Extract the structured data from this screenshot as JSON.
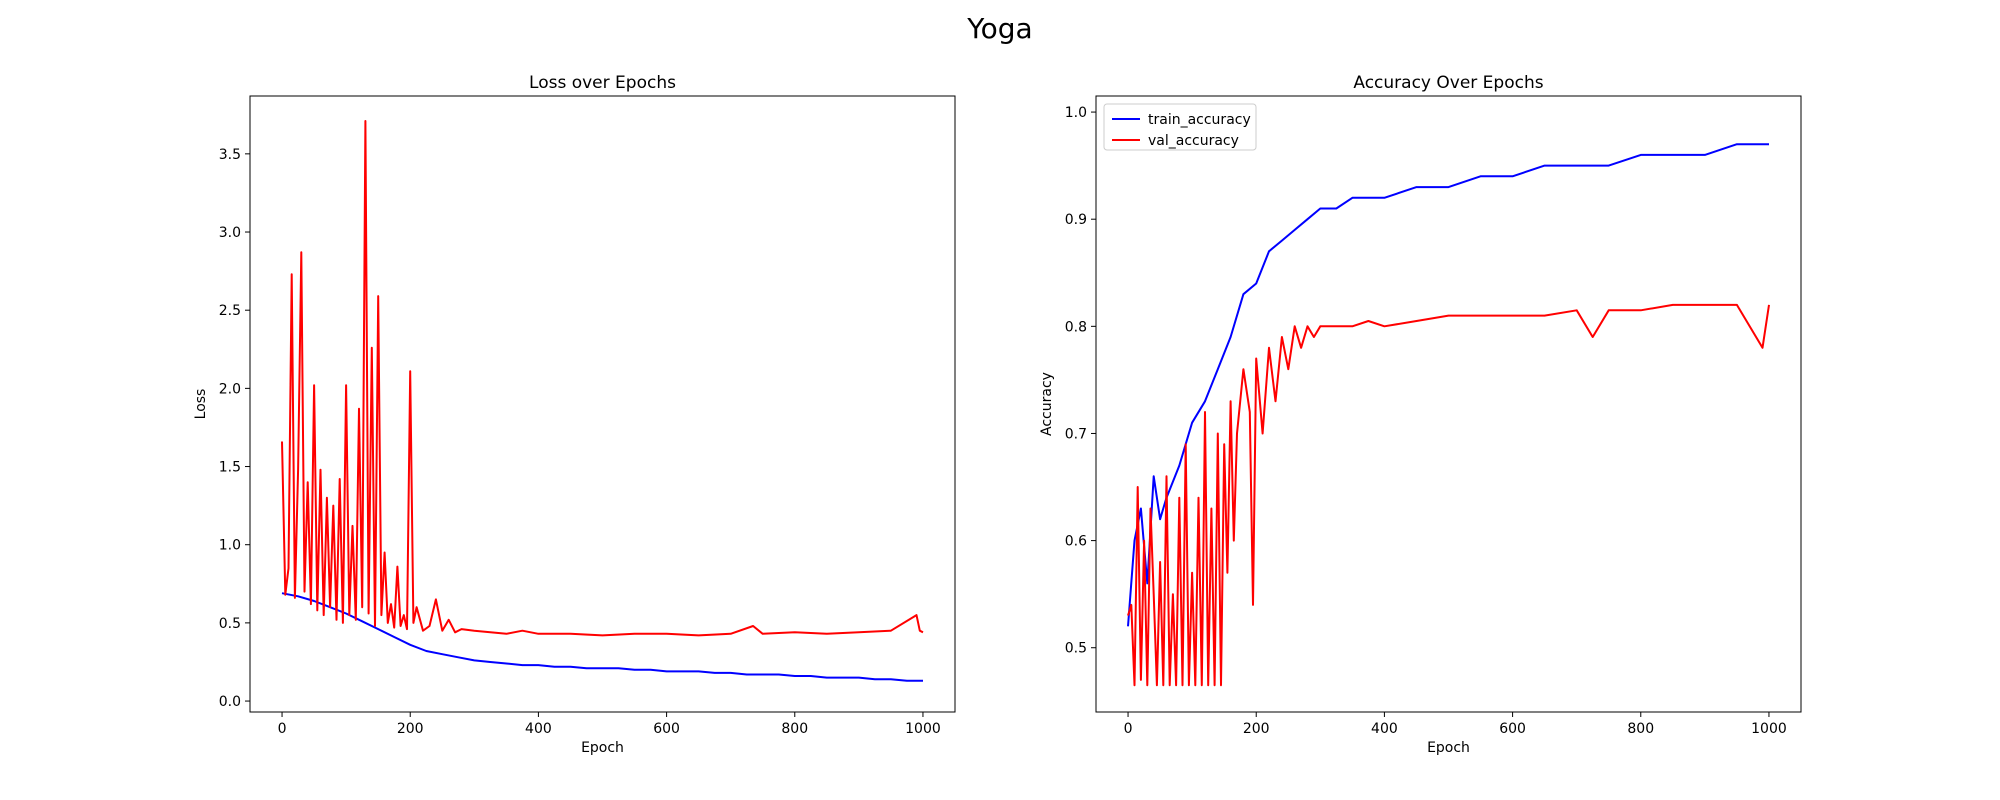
{
  "suptitle": "Yoga",
  "colors": {
    "train": "#0000ff",
    "val": "#ff0000",
    "axes": "#000000",
    "background": "#ffffff"
  },
  "chart_data": [
    {
      "type": "line",
      "title": "Loss over Epochs",
      "xlabel": "Epoch",
      "ylabel": "Loss",
      "xlim": [
        -50,
        1050
      ],
      "ylim": [
        -0.07,
        3.87
      ],
      "xticks": [
        0,
        200,
        400,
        600,
        800,
        1000
      ],
      "yticks": [
        0.0,
        0.5,
        1.0,
        1.5,
        2.0,
        2.5,
        3.0,
        3.5
      ],
      "ytick_labels": [
        "0.0",
        "0.5",
        "1.0",
        "1.5",
        "2.0",
        "2.5",
        "3.0",
        "3.5"
      ],
      "grid": false,
      "legend": false,
      "series": [
        {
          "key": "train_loss",
          "color": "#0000ff",
          "x": [
            0,
            25,
            50,
            75,
            100,
            125,
            150,
            175,
            200,
            225,
            250,
            275,
            300,
            325,
            350,
            375,
            400,
            425,
            450,
            475,
            500,
            525,
            550,
            575,
            600,
            625,
            650,
            675,
            700,
            725,
            750,
            775,
            800,
            825,
            850,
            875,
            900,
            925,
            950,
            975,
            1000
          ],
          "values": [
            0.69,
            0.67,
            0.64,
            0.6,
            0.56,
            0.51,
            0.46,
            0.41,
            0.36,
            0.32,
            0.3,
            0.28,
            0.26,
            0.25,
            0.24,
            0.23,
            0.23,
            0.22,
            0.22,
            0.21,
            0.21,
            0.21,
            0.2,
            0.2,
            0.19,
            0.19,
            0.19,
            0.18,
            0.18,
            0.17,
            0.17,
            0.17,
            0.16,
            0.16,
            0.15,
            0.15,
            0.15,
            0.14,
            0.14,
            0.13,
            0.13
          ]
        },
        {
          "key": "val_loss",
          "color": "#ff0000",
          "x": [
            0,
            5,
            10,
            15,
            20,
            25,
            30,
            35,
            40,
            45,
            50,
            55,
            60,
            65,
            70,
            75,
            80,
            85,
            90,
            95,
            100,
            105,
            110,
            115,
            120,
            125,
            130,
            135,
            140,
            145,
            150,
            155,
            160,
            165,
            170,
            175,
            180,
            185,
            190,
            195,
            200,
            205,
            210,
            220,
            230,
            240,
            250,
            260,
            270,
            280,
            300,
            325,
            350,
            375,
            400,
            450,
            500,
            550,
            600,
            650,
            700,
            735,
            750,
            800,
            850,
            900,
            950,
            990,
            995,
            1000
          ],
          "values": [
            1.66,
            0.68,
            0.85,
            2.73,
            0.66,
            1.48,
            2.87,
            0.7,
            1.4,
            0.62,
            2.02,
            0.58,
            1.48,
            0.55,
            1.3,
            0.6,
            1.25,
            0.52,
            1.42,
            0.5,
            2.02,
            0.55,
            1.12,
            0.52,
            1.87,
            0.6,
            3.71,
            0.56,
            2.26,
            0.48,
            2.59,
            0.55,
            0.95,
            0.5,
            0.62,
            0.47,
            0.86,
            0.48,
            0.55,
            0.46,
            2.11,
            0.5,
            0.6,
            0.45,
            0.48,
            0.65,
            0.45,
            0.52,
            0.44,
            0.46,
            0.45,
            0.44,
            0.43,
            0.45,
            0.43,
            0.43,
            0.42,
            0.43,
            0.43,
            0.42,
            0.43,
            0.48,
            0.43,
            0.44,
            0.43,
            0.44,
            0.45,
            0.55,
            0.45,
            0.44
          ]
        }
      ]
    },
    {
      "type": "line",
      "title": "Accuracy Over Epochs",
      "xlabel": "Epoch",
      "ylabel": "Accuracy",
      "xlim": [
        -50,
        1050
      ],
      "ylim": [
        0.44,
        1.015
      ],
      "xticks": [
        0,
        200,
        400,
        600,
        800,
        1000
      ],
      "yticks": [
        0.5,
        0.6,
        0.7,
        0.8,
        0.9,
        1.0
      ],
      "ytick_labels": [
        "0.5",
        "0.6",
        "0.7",
        "0.8",
        "0.9",
        "1.0"
      ],
      "grid": false,
      "legend": "top-left",
      "series": [
        {
          "name": "train_accuracy",
          "color": "#0000ff",
          "x": [
            0,
            10,
            20,
            30,
            40,
            50,
            60,
            80,
            100,
            120,
            140,
            160,
            180,
            200,
            220,
            240,
            260,
            280,
            300,
            325,
            350,
            375,
            400,
            450,
            500,
            550,
            600,
            650,
            700,
            750,
            800,
            850,
            900,
            950,
            1000
          ],
          "values": [
            0.52,
            0.6,
            0.63,
            0.56,
            0.66,
            0.62,
            0.64,
            0.67,
            0.71,
            0.73,
            0.76,
            0.79,
            0.83,
            0.84,
            0.87,
            0.88,
            0.89,
            0.9,
            0.91,
            0.91,
            0.92,
            0.92,
            0.92,
            0.93,
            0.93,
            0.94,
            0.94,
            0.95,
            0.95,
            0.95,
            0.96,
            0.96,
            0.96,
            0.97,
            0.97
          ]
        },
        {
          "name": "val_accuracy",
          "color": "#ff0000",
          "x": [
            0,
            5,
            10,
            15,
            20,
            25,
            30,
            35,
            40,
            45,
            50,
            55,
            60,
            65,
            70,
            75,
            80,
            85,
            90,
            95,
            100,
            105,
            110,
            115,
            120,
            125,
            130,
            135,
            140,
            145,
            150,
            155,
            160,
            165,
            170,
            180,
            190,
            195,
            200,
            210,
            220,
            230,
            240,
            250,
            260,
            270,
            280,
            290,
            300,
            325,
            350,
            375,
            400,
            450,
            500,
            550,
            600,
            650,
            700,
            725,
            750,
            800,
            850,
            900,
            950,
            990,
            1000
          ],
          "values": [
            0.53,
            0.54,
            0.465,
            0.65,
            0.47,
            0.6,
            0.465,
            0.63,
            0.55,
            0.465,
            0.58,
            0.465,
            0.66,
            0.465,
            0.55,
            0.465,
            0.64,
            0.465,
            0.69,
            0.465,
            0.57,
            0.465,
            0.64,
            0.465,
            0.72,
            0.465,
            0.63,
            0.465,
            0.7,
            0.465,
            0.69,
            0.57,
            0.73,
            0.6,
            0.7,
            0.76,
            0.72,
            0.54,
            0.77,
            0.7,
            0.78,
            0.73,
            0.79,
            0.76,
            0.8,
            0.78,
            0.8,
            0.79,
            0.8,
            0.8,
            0.8,
            0.805,
            0.8,
            0.805,
            0.81,
            0.81,
            0.81,
            0.81,
            0.815,
            0.79,
            0.815,
            0.815,
            0.82,
            0.82,
            0.82,
            0.78,
            0.82
          ]
        }
      ]
    }
  ]
}
